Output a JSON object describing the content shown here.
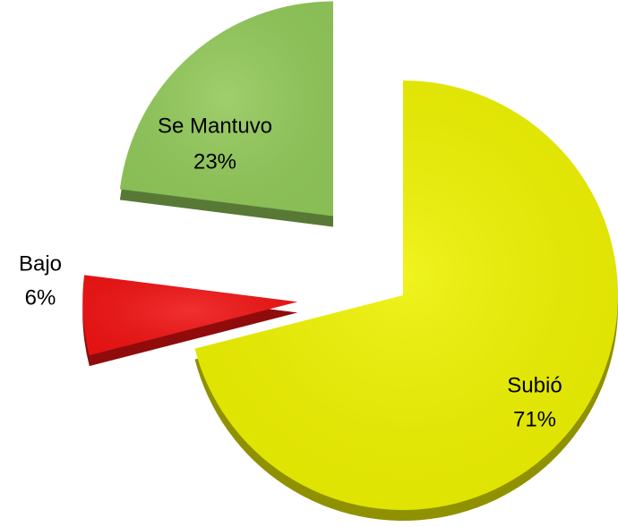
{
  "chart_data": {
    "type": "pie",
    "categories": [
      "Subió",
      "Bajo",
      "Se Mantuvo"
    ],
    "values": [
      71,
      6,
      23
    ],
    "value_labels": [
      "71%",
      "6%",
      "23%"
    ],
    "colors": [
      "#eef200",
      "#f01414",
      "#92c95a"
    ]
  }
}
